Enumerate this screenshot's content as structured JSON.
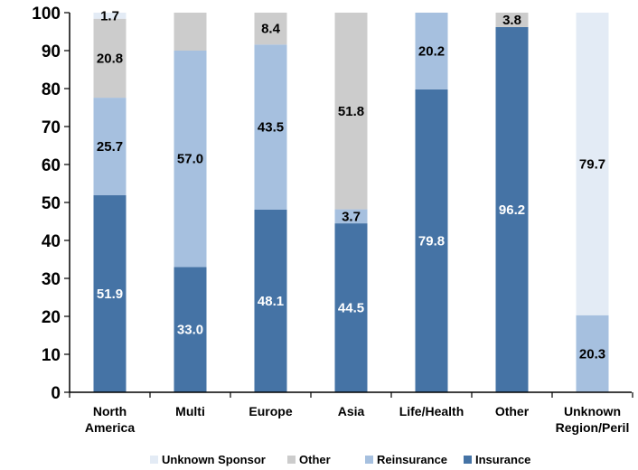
{
  "chart_data": {
    "type": "stacked-bar",
    "categories": [
      [
        "North",
        "America"
      ],
      [
        "Multi"
      ],
      [
        "Europe"
      ],
      [
        "Asia"
      ],
      [
        "Life/Health"
      ],
      [
        "Other"
      ],
      [
        "Unknown",
        "Region/Peril"
      ]
    ],
    "series": [
      {
        "name": "Insurance",
        "color": "#4573a5",
        "label_color": "#ffffff",
        "values": [
          51.9,
          33.0,
          48.1,
          44.5,
          79.8,
          96.2,
          0
        ]
      },
      {
        "name": "Reinsurance",
        "color": "#a6c0df",
        "label_color": "#000000",
        "values": [
          25.7,
          57.0,
          43.5,
          3.7,
          20.2,
          0,
          20.3
        ]
      },
      {
        "name": "Other",
        "color": "#cccccc",
        "label_color": "#000000",
        "values": [
          20.8,
          10.0,
          8.4,
          51.8,
          0,
          3.8,
          0
        ]
      },
      {
        "name": "Unknown Sponsor",
        "color": "#e3ebf5",
        "label_color": "#000000",
        "values": [
          1.7,
          0,
          0,
          0,
          0,
          0,
          79.7
        ]
      }
    ],
    "labels": [
      [
        "51.9",
        "33.0",
        "48.1",
        "44.5",
        "79.8",
        "96.2",
        ""
      ],
      [
        "25.7",
        "57.0",
        "43.5",
        "3.7",
        "20.2",
        "",
        "20.3"
      ],
      [
        "20.8",
        "",
        "8.4",
        "51.8",
        "",
        "3.8",
        ""
      ],
      [
        "1.7",
        "",
        "",
        "",
        "",
        "",
        "79.7"
      ]
    ],
    "ylim": [
      0,
      100
    ],
    "yticks": [
      "0",
      "10",
      "20",
      "30",
      "40",
      "50",
      "60",
      "70",
      "80",
      "90",
      "100"
    ],
    "legend_order": [
      "Unknown Sponsor",
      "Other",
      "Reinsurance",
      "Insurance"
    ],
    "legend_position": "bottom",
    "grid": false
  }
}
